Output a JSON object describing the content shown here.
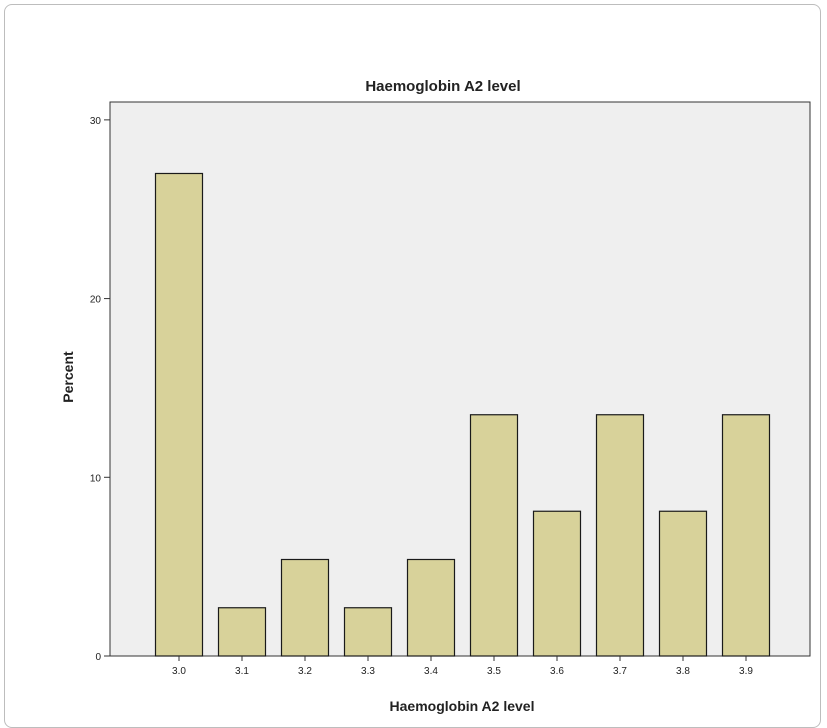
{
  "chart_data": {
    "type": "bar",
    "title": "Haemoglobin A2 level",
    "xlabel": "Haemoglobin A2 level",
    "ylabel": "Percent",
    "categories": [
      "3.0",
      "3.1",
      "3.2",
      "3.3",
      "3.4",
      "3.5",
      "3.6",
      "3.7",
      "3.8",
      "3.9"
    ],
    "values": [
      27.0,
      2.7,
      5.4,
      2.7,
      5.4,
      13.5,
      8.1,
      13.5,
      8.1,
      13.5
    ],
    "ylim": [
      0,
      31
    ],
    "yticks": [
      "0",
      "10",
      "20",
      "30"
    ],
    "grid": false,
    "colors": {
      "bar_fill": "#d8d29a",
      "bar_stroke": "#1a1a1a",
      "plot_background": "#efefef"
    }
  }
}
